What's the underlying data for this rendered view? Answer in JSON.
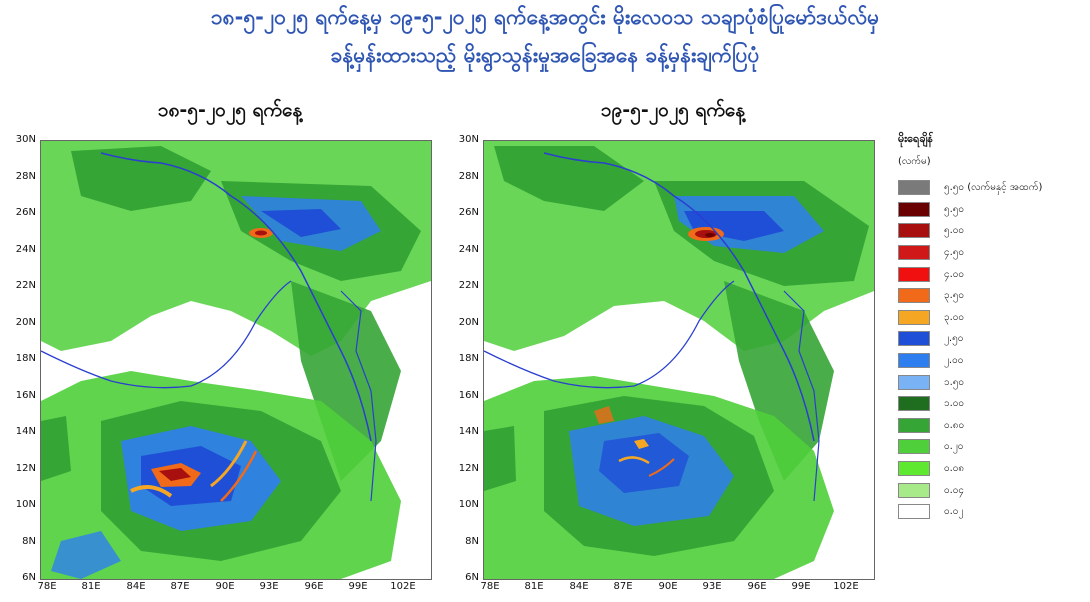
{
  "title": {
    "line1": "၁၈-၅-၂၀၂၅ ရက်နေ့မှ ၁၉-၅-၂၀၂၅ ရက်နေ့အတွင်း မိုးလေဝသ သချာပုံစံပြုမော်ဒယ်လ်မှ",
    "line2": "ခန့်မှန်းထားသည့် မိုးရွာသွန်းမှုအခြေအနေ ခန့်မှန်းချက်ပြပုံ"
  },
  "maps": [
    {
      "title": "၁၈-၅-၂၀၂၅ ရက်နေ့"
    },
    {
      "title": "၁၉-၅-၂၀၂၅ ရက်နေ့"
    }
  ],
  "axes": {
    "y_labels": [
      "30N",
      "28N",
      "26N",
      "24N",
      "22N",
      "20N",
      "18N",
      "16N",
      "14N",
      "12N",
      "10N",
      "8N",
      "6N"
    ],
    "x_labels": [
      "78E",
      "81E",
      "84E",
      "87E",
      "90E",
      "93E",
      "96E",
      "99E",
      "102E"
    ]
  },
  "legend": {
    "heading": "မိုးရေချိန်",
    "unit": "(လက်မ)",
    "items": [
      {
        "label": "၅.၅၀ (လက်မနှင့် အထက်)",
        "color": "#7a7a7a"
      },
      {
        "label": "၅.၅၀",
        "color": "#6b0000"
      },
      {
        "label": "၅.၀၀",
        "color": "#a81010"
      },
      {
        "label": "၄.၅၀",
        "color": "#d01818"
      },
      {
        "label": "၄.၀၀",
        "color": "#f01010"
      },
      {
        "label": "၃.၅၀",
        "color": "#f06a1a"
      },
      {
        "label": "၃.၀၀",
        "color": "#f5a623"
      },
      {
        "label": "၂.၅၀",
        "color": "#1f4fd6"
      },
      {
        "label": "၂.၀၀",
        "color": "#2f7ef0"
      },
      {
        "label": "၁.၅၀",
        "color": "#7ab3f5"
      },
      {
        "label": "၁.၀၀",
        "color": "#1f6e1f"
      },
      {
        "label": "၀.၈၀",
        "color": "#35a535"
      },
      {
        "label": "၀.၂၀",
        "color": "#4fcf3a"
      },
      {
        "label": "၀.၀၈",
        "color": "#5ee82f"
      },
      {
        "label": "၀.၀၄",
        "color": "#a8ea8a"
      },
      {
        "label": "၀.၀၂",
        "color": "#ffffff"
      }
    ]
  }
}
